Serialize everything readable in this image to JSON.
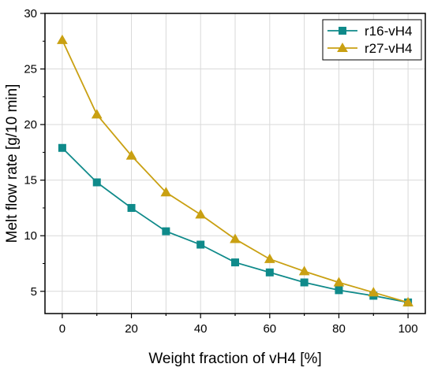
{
  "chart_data": {
    "type": "line",
    "xlabel": "Weight fraction of vH4 [%]",
    "ylabel": "Melt flow rate [g/10 min]",
    "xlim": [
      -5,
      105
    ],
    "ylim": [
      3,
      30
    ],
    "x_ticks": [
      0,
      20,
      40,
      60,
      80,
      100
    ],
    "y_ticks": [
      5,
      10,
      15,
      20,
      25,
      30
    ],
    "grid": true,
    "legend_position": "top-right",
    "x": [
      0,
      10,
      20,
      30,
      40,
      50,
      60,
      70,
      80,
      90,
      100
    ],
    "series": [
      {
        "name": "r16-vH4",
        "color": "#0f8a8a",
        "marker": "square",
        "values": [
          17.9,
          14.8,
          12.5,
          10.4,
          9.2,
          7.6,
          6.7,
          5.8,
          5.1,
          4.6,
          4.0
        ]
      },
      {
        "name": "r27-vH4",
        "color": "#c9a012",
        "marker": "triangle",
        "values": [
          27.6,
          20.9,
          17.2,
          13.9,
          11.9,
          9.7,
          7.9,
          6.8,
          5.8,
          4.9,
          4.0
        ]
      }
    ]
  }
}
